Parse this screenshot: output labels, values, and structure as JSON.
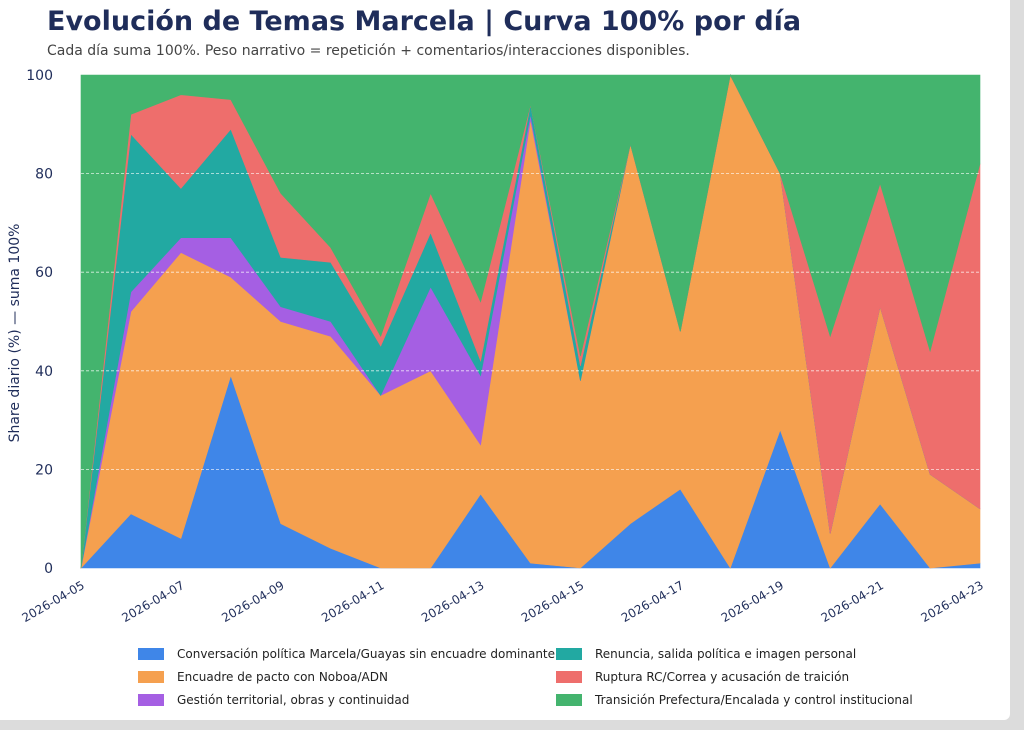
{
  "title": "Evolución de Temas Marcela | Curva 100% por día",
  "subtitle": "Cada día suma 100%. Peso narrativo = repetición + comentarios/interacciones disponibles.",
  "chart_data": {
    "type": "area",
    "stacked": true,
    "title": "Evolución de Temas Marcela | Curva 100% por día",
    "ylabel": "Share diario (%) — suma 100%",
    "xlabel": "",
    "ylim": [
      0,
      100
    ],
    "yticks": [
      "0",
      "20",
      "40",
      "60",
      "80",
      "100"
    ],
    "grid": true,
    "legend_position": "bottom",
    "x": [
      "2026-04-05",
      "2026-04-06",
      "2026-04-07",
      "2026-04-08",
      "2026-04-09",
      "2026-04-10",
      "2026-04-11",
      "2026-04-12",
      "2026-04-13",
      "2026-04-14",
      "2026-04-15",
      "2026-04-16",
      "2026-04-17",
      "2026-04-18",
      "2026-04-19",
      "2026-04-20",
      "2026-04-21",
      "2026-04-22",
      "2026-04-23"
    ],
    "xtick_labels": [
      "2026-04-05",
      "2026-04-07",
      "2026-04-09",
      "2026-04-11",
      "2026-04-13",
      "2026-04-15",
      "2026-04-17",
      "2026-04-19",
      "2026-04-21",
      "2026-04-23"
    ],
    "series": [
      {
        "name": "Conversación política Marcela/Guayas sin encuadre dominante",
        "color": "#3f86e8",
        "values": [
          0,
          11,
          6,
          39,
          9,
          4,
          0,
          0,
          15,
          1,
          0,
          9,
          16,
          0,
          28,
          0,
          13,
          0,
          1
        ]
      },
      {
        "name": "Encuadre de pacto con Noboa/ADN",
        "color": "#f5a04f",
        "values": [
          0,
          41,
          58,
          20,
          41,
          43,
          35,
          40,
          10,
          90,
          38,
          77,
          32,
          100,
          52,
          7,
          40,
          19,
          11
        ]
      },
      {
        "name": "Gestión territorial, obras y continuidad",
        "color": "#a55fe3",
        "values": [
          0,
          4,
          3,
          8,
          3,
          3,
          0,
          17,
          14,
          1,
          0,
          0,
          0,
          0,
          0,
          0,
          0,
          0,
          0
        ]
      },
      {
        "name": "Renuncia, salida política e imagen personal",
        "color": "#22a9a2",
        "values": [
          0,
          32,
          10,
          22,
          10,
          12,
          10,
          11,
          3,
          2,
          3,
          0,
          0,
          0,
          0,
          0,
          0,
          0,
          0
        ]
      },
      {
        "name": "Ruptura RC/Correa y acusación de traición",
        "color": "#ee6e6c",
        "values": [
          0,
          4,
          19,
          6,
          13,
          3,
          2,
          8,
          12,
          0,
          2,
          0,
          0,
          0,
          0,
          40,
          25,
          25,
          70
        ]
      },
      {
        "name": "Transición Prefectura/Encalada y control institucional",
        "color": "#44b46e",
        "values": [
          100,
          8,
          4,
          5,
          24,
          35,
          53,
          24,
          46,
          6,
          57,
          14,
          52,
          0,
          20,
          53,
          22,
          56,
          18
        ]
      }
    ]
  }
}
